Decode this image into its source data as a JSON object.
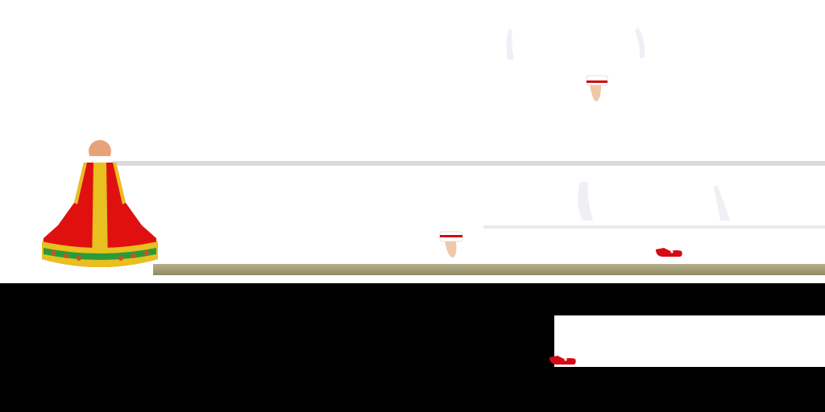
{
  "scene": {
    "background": "#ffffff",
    "floor_color": "#000000",
    "dress_colors": {
      "main": "#e01010",
      "trim": "#e8c020",
      "hem": "#2a9a3a",
      "skin": "#e8a27a"
    },
    "shoe_color": "#d40a14",
    "sprites": [
      "sarafan-dress-icon",
      "sleeve-cuff-icon",
      "red-shoe-icon",
      "white-glove-icon"
    ]
  }
}
